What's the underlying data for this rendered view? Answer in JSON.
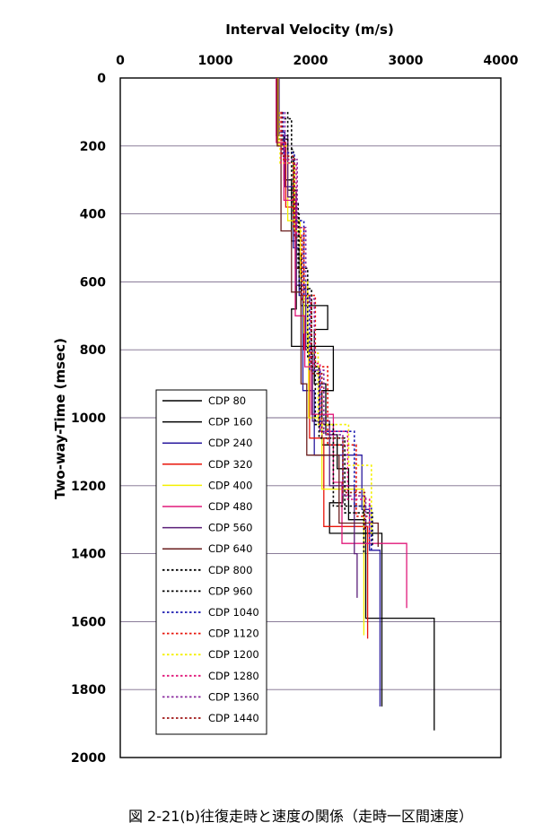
{
  "chart_data": {
    "type": "line",
    "title": "Interval Velocity (m/s)",
    "xlabel": "Interval Velocity (m/s)",
    "ylabel": "Two-way-Time (msec)",
    "xlim": [
      0,
      4000
    ],
    "ylim": [
      2000,
      0
    ],
    "x_axis_position": "top",
    "y_inverted": true,
    "grid": "horizontal",
    "legend_position": "bottom-left",
    "xticks": [
      "0",
      "1000",
      "2000",
      "3000",
      "4000"
    ],
    "yticks": [
      "0",
      "200",
      "400",
      "600",
      "800",
      "1000",
      "1200",
      "1400",
      "1600",
      "1800",
      "2000"
    ],
    "series": [
      {
        "name": "CDP 80",
        "color": "#000000",
        "dash": "solid",
        "points": [
          [
            1650,
            0
          ],
          [
            1650,
            180
          ],
          [
            1760,
            180
          ],
          [
            1760,
            330
          ],
          [
            1850,
            330
          ],
          [
            1850,
            520
          ],
          [
            1900,
            520
          ],
          [
            1900,
            670
          ],
          [
            2180,
            670
          ],
          [
            2180,
            740
          ],
          [
            2040,
            740
          ],
          [
            2040,
            900
          ],
          [
            2160,
            900
          ],
          [
            2160,
            1050
          ],
          [
            2280,
            1050
          ],
          [
            2280,
            1150
          ],
          [
            2400,
            1150
          ],
          [
            2400,
            1300
          ],
          [
            2580,
            1300
          ],
          [
            2580,
            1590
          ],
          [
            3300,
            1590
          ],
          [
            3300,
            1920
          ]
        ]
      },
      {
        "name": "CDP 160",
        "color": "#000000",
        "dash": "solid",
        "points": [
          [
            1640,
            0
          ],
          [
            1640,
            170
          ],
          [
            1720,
            170
          ],
          [
            1720,
            300
          ],
          [
            1800,
            300
          ],
          [
            1800,
            480
          ],
          [
            1850,
            480
          ],
          [
            1850,
            680
          ],
          [
            1800,
            680
          ],
          [
            1800,
            790
          ],
          [
            2240,
            790
          ],
          [
            2240,
            920
          ],
          [
            2120,
            920
          ],
          [
            2120,
            1080
          ],
          [
            2340,
            1080
          ],
          [
            2340,
            1250
          ],
          [
            2200,
            1250
          ],
          [
            2200,
            1340
          ],
          [
            2750,
            1340
          ],
          [
            2750,
            1510
          ],
          [
            2750,
            1850
          ]
        ]
      },
      {
        "name": "CDP 240",
        "color": "#2a1a9e",
        "dash": "solid",
        "points": [
          [
            1660,
            0
          ],
          [
            1660,
            160
          ],
          [
            1730,
            160
          ],
          [
            1730,
            320
          ],
          [
            1820,
            320
          ],
          [
            1820,
            500
          ],
          [
            1880,
            500
          ],
          [
            1880,
            640
          ],
          [
            1920,
            640
          ],
          [
            1920,
            920
          ],
          [
            2040,
            920
          ],
          [
            2040,
            1110
          ],
          [
            2540,
            1110
          ],
          [
            2540,
            1270
          ],
          [
            2620,
            1270
          ],
          [
            2620,
            1390
          ],
          [
            2730,
            1390
          ],
          [
            2730,
            1850
          ]
        ]
      },
      {
        "name": "CDP 320",
        "color": "#e8140a",
        "dash": "solid",
        "points": [
          [
            1650,
            0
          ],
          [
            1650,
            190
          ],
          [
            1740,
            190
          ],
          [
            1740,
            380
          ],
          [
            1840,
            380
          ],
          [
            1840,
            560
          ],
          [
            1930,
            560
          ],
          [
            1930,
            800
          ],
          [
            1990,
            800
          ],
          [
            1990,
            1060
          ],
          [
            2140,
            1060
          ],
          [
            2140,
            1320
          ],
          [
            2600,
            1320
          ],
          [
            2600,
            1650
          ]
        ]
      },
      {
        "name": "CDP 400",
        "color": "#f4f000",
        "dash": "solid",
        "points": [
          [
            1660,
            0
          ],
          [
            1660,
            200
          ],
          [
            1760,
            200
          ],
          [
            1760,
            420
          ],
          [
            1890,
            420
          ],
          [
            1890,
            580
          ],
          [
            1930,
            580
          ],
          [
            1930,
            750
          ],
          [
            1980,
            750
          ],
          [
            1980,
            1000
          ],
          [
            2120,
            1000
          ],
          [
            2120,
            1210
          ],
          [
            2560,
            1210
          ],
          [
            2560,
            1640
          ]
        ]
      },
      {
        "name": "CDP 480",
        "color": "#e0187a",
        "dash": "solid",
        "points": [
          [
            1640,
            0
          ],
          [
            1640,
            190
          ],
          [
            1720,
            190
          ],
          [
            1720,
            360
          ],
          [
            1840,
            360
          ],
          [
            1840,
            700
          ],
          [
            1940,
            700
          ],
          [
            1940,
            850
          ],
          [
            2010,
            850
          ],
          [
            2010,
            990
          ],
          [
            2240,
            990
          ],
          [
            2240,
            1190
          ],
          [
            2330,
            1190
          ],
          [
            2330,
            1370
          ],
          [
            2620,
            1370
          ],
          [
            2620,
            1370
          ],
          [
            3010,
            1370
          ],
          [
            3010,
            1560
          ]
        ]
      },
      {
        "name": "CDP 560",
        "color": "#5a1e78",
        "dash": "solid",
        "points": [
          [
            1670,
            0
          ],
          [
            1670,
            170
          ],
          [
            1760,
            170
          ],
          [
            1760,
            350
          ],
          [
            1850,
            350
          ],
          [
            1850,
            610
          ],
          [
            1950,
            610
          ],
          [
            1950,
            800
          ],
          [
            2020,
            800
          ],
          [
            2020,
            1010
          ],
          [
            2200,
            1010
          ],
          [
            2200,
            1200
          ],
          [
            2460,
            1200
          ],
          [
            2460,
            1400
          ],
          [
            2490,
            1400
          ],
          [
            2490,
            1530
          ]
        ]
      },
      {
        "name": "CDP 640",
        "color": "#6a1e1e",
        "dash": "solid",
        "points": [
          [
            1650,
            0
          ],
          [
            1650,
            200
          ],
          [
            1690,
            200
          ],
          [
            1690,
            450
          ],
          [
            1800,
            450
          ],
          [
            1800,
            630
          ],
          [
            1900,
            630
          ],
          [
            1900,
            900
          ],
          [
            1960,
            900
          ],
          [
            1960,
            1110
          ],
          [
            2300,
            1110
          ],
          [
            2300,
            1310
          ],
          [
            2710,
            1310
          ],
          [
            2710,
            1380
          ]
        ]
      },
      {
        "name": "CDP 800",
        "color": "#000000",
        "dash": "dotted",
        "points": [
          [
            1700,
            100
          ],
          [
            1700,
            120
          ],
          [
            1800,
            120
          ],
          [
            1800,
            370
          ],
          [
            1870,
            370
          ],
          [
            1870,
            560
          ],
          [
            1970,
            560
          ],
          [
            1970,
            820
          ],
          [
            2050,
            820
          ],
          [
            2050,
            1020
          ],
          [
            2240,
            1020
          ],
          [
            2240,
            1260
          ],
          [
            2560,
            1260
          ],
          [
            2560,
            1400
          ]
        ]
      },
      {
        "name": "CDP 960",
        "color": "#000000",
        "dash": "dotted",
        "points": [
          [
            1760,
            100
          ],
          [
            1760,
            210
          ],
          [
            1820,
            210
          ],
          [
            1820,
            400
          ],
          [
            1880,
            400
          ],
          [
            1880,
            620
          ],
          [
            2010,
            620
          ],
          [
            2010,
            850
          ],
          [
            2090,
            850
          ],
          [
            2090,
            1060
          ],
          [
            2360,
            1060
          ],
          [
            2360,
            1280
          ],
          [
            2650,
            1280
          ],
          [
            2650,
            1380
          ]
        ]
      },
      {
        "name": "CDP 1040",
        "color": "#1a1ab0",
        "dash": "dotted",
        "points": [
          [
            1710,
            100
          ],
          [
            1710,
            220
          ],
          [
            1830,
            220
          ],
          [
            1830,
            420
          ],
          [
            1930,
            420
          ],
          [
            1930,
            640
          ],
          [
            1990,
            640
          ],
          [
            1990,
            860
          ],
          [
            2100,
            860
          ],
          [
            2100,
            1040
          ],
          [
            2460,
            1040
          ],
          [
            2460,
            1260
          ],
          [
            2640,
            1260
          ],
          [
            2640,
            1390
          ]
        ]
      },
      {
        "name": "CDP 1120",
        "color": "#e8140a",
        "dash": "dotted",
        "points": [
          [
            1690,
            100
          ],
          [
            1690,
            240
          ],
          [
            1820,
            240
          ],
          [
            1820,
            440
          ],
          [
            1930,
            440
          ],
          [
            1930,
            640
          ],
          [
            2050,
            640
          ],
          [
            2050,
            850
          ],
          [
            2180,
            850
          ],
          [
            2180,
            1080
          ],
          [
            2480,
            1080
          ],
          [
            2480,
            1290
          ],
          [
            2620,
            1290
          ],
          [
            2620,
            1370
          ]
        ]
      },
      {
        "name": "CDP 1200",
        "color": "#f4f000",
        "dash": "dotted",
        "points": [
          [
            1680,
            100
          ],
          [
            1680,
            250
          ],
          [
            1830,
            250
          ],
          [
            1830,
            450
          ],
          [
            1900,
            450
          ],
          [
            1900,
            600
          ],
          [
            1970,
            600
          ],
          [
            1970,
            810
          ],
          [
            2080,
            810
          ],
          [
            2080,
            1020
          ],
          [
            2400,
            1020
          ],
          [
            2400,
            1140
          ],
          [
            2640,
            1140
          ],
          [
            2640,
            1340
          ]
        ]
      },
      {
        "name": "CDP 1280",
        "color": "#e0187a",
        "dash": "dotted",
        "points": [
          [
            1690,
            100
          ],
          [
            1690,
            250
          ],
          [
            1850,
            250
          ],
          [
            1850,
            460
          ],
          [
            1910,
            460
          ],
          [
            1910,
            650
          ],
          [
            2000,
            650
          ],
          [
            2000,
            840
          ],
          [
            2100,
            840
          ],
          [
            2100,
            1040
          ],
          [
            2390,
            1040
          ],
          [
            2390,
            1240
          ],
          [
            2620,
            1240
          ],
          [
            2620,
            1360
          ]
        ]
      },
      {
        "name": "CDP 1360",
        "color": "#8a2a9e",
        "dash": "dotted",
        "points": [
          [
            1730,
            100
          ],
          [
            1730,
            240
          ],
          [
            1860,
            240
          ],
          [
            1860,
            440
          ],
          [
            1950,
            440
          ],
          [
            1950,
            650
          ],
          [
            2040,
            650
          ],
          [
            2040,
            860
          ],
          [
            2140,
            860
          ],
          [
            2140,
            1050
          ],
          [
            2340,
            1050
          ],
          [
            2340,
            1230
          ],
          [
            2580,
            1230
          ],
          [
            2580,
            1330
          ]
        ]
      },
      {
        "name": "CDP 1440",
        "color": "#a01818",
        "dash": "dotted",
        "points": [
          [
            1700,
            100
          ],
          [
            1700,
            230
          ],
          [
            1830,
            230
          ],
          [
            1830,
            470
          ],
          [
            1910,
            470
          ],
          [
            1910,
            660
          ],
          [
            2010,
            660
          ],
          [
            2010,
            870
          ],
          [
            2120,
            870
          ],
          [
            2120,
            1060
          ],
          [
            2340,
            1060
          ],
          [
            2340,
            1220
          ],
          [
            2570,
            1220
          ],
          [
            2570,
            1330
          ]
        ]
      }
    ]
  },
  "caption": "図 2-21(b)往復走時と速度の関係（走時一区間速度）"
}
